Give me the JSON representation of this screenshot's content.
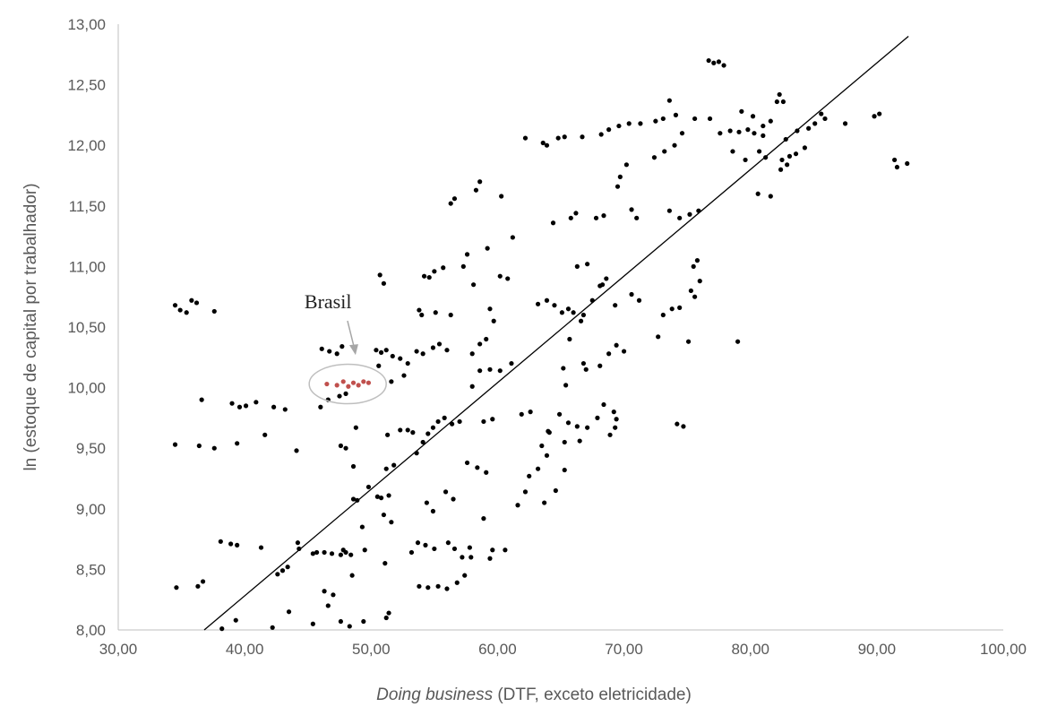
{
  "chart_data": {
    "type": "scatter",
    "title": "",
    "xlabel": {
      "italic": "Doing business",
      "rest": " (DTF, exceto eletricidade)"
    },
    "ylabel": "ln (estoque de capital por trabalhador)",
    "xlim": [
      30,
      100
    ],
    "ylim": [
      8,
      13
    ],
    "x_ticks": [
      "30,00",
      "40,00",
      "50,00",
      "60,00",
      "70,00",
      "80,00",
      "90,00",
      "100,00"
    ],
    "y_ticks": [
      "8,00",
      "8,50",
      "9,00",
      "9,50",
      "10,00",
      "10,50",
      "11,00",
      "11,50",
      "12,00",
      "12,50",
      "13,00"
    ],
    "grid": false,
    "legend": "none",
    "trendline": {
      "x": [
        36.8,
        92.5
      ],
      "y": [
        8.0,
        12.9
      ]
    },
    "point_color": "#000000",
    "highlight_color": "#c0504d",
    "annotation": {
      "text": "Brasil",
      "target": [
        48.7,
        10.27
      ]
    },
    "highlight_points": [
      [
        46.5,
        10.03
      ],
      [
        47.3,
        10.02
      ],
      [
        47.8,
        10.05
      ],
      [
        48.2,
        10.01
      ],
      [
        48.6,
        10.04
      ],
      [
        49.0,
        10.02
      ],
      [
        49.4,
        10.05
      ],
      [
        49.8,
        10.04
      ]
    ],
    "points": [
      [
        34.5,
        10.68
      ],
      [
        34.9,
        10.64
      ],
      [
        35.4,
        10.62
      ],
      [
        35.8,
        10.72
      ],
      [
        36.2,
        10.7
      ],
      [
        37.6,
        10.63
      ],
      [
        34.5,
        9.53
      ],
      [
        36.4,
        9.52
      ],
      [
        37.6,
        9.5
      ],
      [
        36.6,
        9.9
      ],
      [
        34.6,
        8.35
      ],
      [
        36.3,
        8.36
      ],
      [
        36.7,
        8.4
      ],
      [
        39.0,
        9.87
      ],
      [
        39.6,
        9.84
      ],
      [
        40.1,
        9.85
      ],
      [
        40.9,
        9.88
      ],
      [
        41.6,
        9.61
      ],
      [
        42.3,
        9.84
      ],
      [
        43.2,
        9.82
      ],
      [
        44.1,
        9.48
      ],
      [
        39.4,
        9.54
      ],
      [
        38.1,
        8.73
      ],
      [
        38.9,
        8.71
      ],
      [
        39.4,
        8.7
      ],
      [
        41.3,
        8.68
      ],
      [
        43.0,
        8.49
      ],
      [
        43.4,
        8.52
      ],
      [
        42.6,
        8.46
      ],
      [
        44.2,
        8.72
      ],
      [
        44.3,
        8.67
      ],
      [
        45.4,
        8.63
      ],
      [
        45.7,
        8.64
      ],
      [
        46.3,
        8.64
      ],
      [
        46.9,
        8.63
      ],
      [
        47.6,
        8.62
      ],
      [
        48.0,
        8.64
      ],
      [
        48.4,
        8.62
      ],
      [
        47.8,
        8.66
      ],
      [
        48.5,
        8.45
      ],
      [
        47.0,
        8.29
      ],
      [
        46.6,
        8.2
      ],
      [
        46.3,
        8.32
      ],
      [
        45.4,
        8.05
      ],
      [
        47.6,
        8.07
      ],
      [
        48.3,
        8.03
      ],
      [
        49.4,
        8.07
      ],
      [
        38.2,
        8.01
      ],
      [
        39.3,
        8.08
      ],
      [
        42.2,
        8.02
      ],
      [
        43.5,
        8.15
      ],
      [
        51.2,
        8.1
      ],
      [
        51.4,
        8.14
      ],
      [
        51.1,
        8.55
      ],
      [
        46.1,
        10.32
      ],
      [
        46.7,
        10.3
      ],
      [
        47.3,
        10.28
      ],
      [
        47.7,
        10.34
      ],
      [
        46.0,
        9.84
      ],
      [
        46.6,
        9.9
      ],
      [
        47.5,
        9.93
      ],
      [
        48.0,
        9.95
      ],
      [
        47.6,
        9.52
      ],
      [
        48.0,
        9.5
      ],
      [
        48.6,
        9.35
      ],
      [
        48.8,
        9.67
      ],
      [
        48.6,
        9.08
      ],
      [
        48.9,
        9.07
      ],
      [
        49.8,
        9.18
      ],
      [
        50.5,
        9.1
      ],
      [
        50.8,
        9.09
      ],
      [
        51.2,
        9.33
      ],
      [
        51.3,
        9.61
      ],
      [
        51.4,
        9.11
      ],
      [
        51.8,
        9.36
      ],
      [
        52.3,
        9.65
      ],
      [
        52.9,
        9.65
      ],
      [
        53.3,
        9.63
      ],
      [
        51.0,
        8.95
      ],
      [
        51.6,
        8.89
      ],
      [
        49.3,
        8.85
      ],
      [
        49.5,
        8.66
      ],
      [
        50.4,
        10.31
      ],
      [
        50.8,
        10.29
      ],
      [
        51.2,
        10.31
      ],
      [
        51.7,
        10.26
      ],
      [
        52.3,
        10.24
      ],
      [
        52.9,
        10.2
      ],
      [
        53.6,
        10.3
      ],
      [
        54.1,
        10.28
      ],
      [
        54.9,
        10.33
      ],
      [
        55.4,
        10.36
      ],
      [
        56.0,
        10.31
      ],
      [
        50.6,
        10.18
      ],
      [
        51.6,
        10.05
      ],
      [
        52.6,
        10.1
      ],
      [
        53.8,
        10.64
      ],
      [
        54.0,
        10.6
      ],
      [
        55.1,
        10.62
      ],
      [
        54.2,
        10.92
      ],
      [
        54.6,
        10.91
      ],
      [
        55.0,
        10.96
      ],
      [
        55.7,
        10.99
      ],
      [
        56.3,
        10.6
      ],
      [
        50.7,
        10.93
      ],
      [
        51.0,
        10.86
      ],
      [
        53.6,
        9.46
      ],
      [
        54.1,
        9.55
      ],
      [
        54.5,
        9.62
      ],
      [
        54.9,
        9.67
      ],
      [
        55.3,
        9.72
      ],
      [
        55.8,
        9.75
      ],
      [
        56.4,
        9.7
      ],
      [
        57.0,
        9.72
      ],
      [
        54.4,
        9.05
      ],
      [
        54.9,
        8.98
      ],
      [
        55.9,
        9.14
      ],
      [
        56.5,
        9.08
      ],
      [
        57.6,
        9.38
      ],
      [
        58.4,
        9.34
      ],
      [
        59.1,
        9.3
      ],
      [
        58.9,
        8.92
      ],
      [
        53.2,
        8.64
      ],
      [
        53.7,
        8.72
      ],
      [
        54.3,
        8.7
      ],
      [
        55.0,
        8.67
      ],
      [
        56.1,
        8.72
      ],
      [
        56.6,
        8.67
      ],
      [
        57.2,
        8.6
      ],
      [
        57.8,
        8.68
      ],
      [
        53.8,
        8.36
      ],
      [
        54.5,
        8.35
      ],
      [
        55.3,
        8.36
      ],
      [
        56.0,
        8.34
      ],
      [
        56.8,
        8.39
      ],
      [
        57.4,
        8.45
      ],
      [
        57.9,
        8.6
      ],
      [
        56.3,
        11.52
      ],
      [
        56.6,
        11.56
      ],
      [
        57.3,
        11.0
      ],
      [
        57.6,
        11.1
      ],
      [
        58.3,
        11.63
      ],
      [
        58.6,
        11.7
      ],
      [
        58.1,
        10.85
      ],
      [
        59.4,
        10.65
      ],
      [
        59.7,
        10.55
      ],
      [
        60.2,
        10.92
      ],
      [
        60.8,
        10.9
      ],
      [
        61.2,
        11.24
      ],
      [
        59.2,
        11.15
      ],
      [
        60.3,
        11.58
      ],
      [
        58.0,
        10.28
      ],
      [
        58.6,
        10.36
      ],
      [
        59.1,
        10.4
      ],
      [
        58.0,
        10.01
      ],
      [
        58.6,
        10.14
      ],
      [
        59.4,
        10.15
      ],
      [
        60.2,
        10.14
      ],
      [
        61.1,
        10.2
      ],
      [
        58.9,
        9.72
      ],
      [
        59.6,
        9.74
      ],
      [
        61.9,
        9.78
      ],
      [
        62.6,
        9.8
      ],
      [
        61.6,
        9.03
      ],
      [
        62.2,
        9.14
      ],
      [
        62.5,
        9.27
      ],
      [
        63.2,
        9.33
      ],
      [
        63.9,
        9.44
      ],
      [
        64.0,
        9.64
      ],
      [
        63.5,
        9.52
      ],
      [
        63.7,
        9.05
      ],
      [
        64.6,
        9.15
      ],
      [
        65.3,
        9.32
      ],
      [
        59.4,
        8.59
      ],
      [
        59.6,
        8.66
      ],
      [
        60.6,
        8.66
      ],
      [
        62.2,
        12.06
      ],
      [
        63.6,
        12.02
      ],
      [
        63.9,
        12.0
      ],
      [
        64.8,
        12.06
      ],
      [
        65.3,
        12.07
      ],
      [
        66.7,
        12.07
      ],
      [
        64.4,
        11.36
      ],
      [
        65.8,
        11.4
      ],
      [
        66.2,
        11.44
      ],
      [
        67.8,
        11.4
      ],
      [
        68.4,
        11.42
      ],
      [
        66.3,
        11.0
      ],
      [
        67.1,
        11.02
      ],
      [
        68.3,
        10.85
      ],
      [
        68.6,
        10.9
      ],
      [
        63.2,
        10.69
      ],
      [
        63.9,
        10.72
      ],
      [
        64.5,
        10.68
      ],
      [
        65.1,
        10.62
      ],
      [
        65.6,
        10.65
      ],
      [
        66.0,
        10.62
      ],
      [
        66.8,
        10.6
      ],
      [
        65.7,
        10.4
      ],
      [
        66.6,
        10.55
      ],
      [
        67.5,
        10.72
      ],
      [
        68.1,
        10.84
      ],
      [
        69.3,
        10.68
      ],
      [
        65.2,
        10.16
      ],
      [
        65.4,
        10.02
      ],
      [
        66.8,
        10.2
      ],
      [
        67.0,
        10.15
      ],
      [
        68.1,
        10.18
      ],
      [
        64.9,
        9.78
      ],
      [
        65.6,
        9.71
      ],
      [
        66.3,
        9.68
      ],
      [
        67.1,
        9.67
      ],
      [
        67.9,
        9.75
      ],
      [
        68.4,
        9.86
      ],
      [
        69.2,
        9.8
      ],
      [
        69.4,
        9.74
      ],
      [
        68.9,
        9.61
      ],
      [
        69.3,
        9.67
      ],
      [
        64.1,
        9.63
      ],
      [
        65.3,
        9.55
      ],
      [
        66.5,
        9.56
      ],
      [
        68.2,
        12.09
      ],
      [
        68.8,
        12.13
      ],
      [
        69.6,
        12.16
      ],
      [
        70.4,
        12.18
      ],
      [
        71.3,
        12.18
      ],
      [
        72.5,
        12.2
      ],
      [
        73.1,
        12.22
      ],
      [
        73.6,
        12.37
      ],
      [
        74.1,
        12.25
      ],
      [
        74.6,
        12.1
      ],
      [
        69.5,
        11.66
      ],
      [
        69.7,
        11.74
      ],
      [
        70.2,
        11.84
      ],
      [
        70.6,
        11.47
      ],
      [
        71.0,
        11.4
      ],
      [
        72.4,
        11.9
      ],
      [
        73.2,
        11.95
      ],
      [
        74.0,
        12.0
      ],
      [
        75.6,
        12.22
      ],
      [
        73.6,
        11.46
      ],
      [
        74.4,
        11.4
      ],
      [
        75.2,
        11.43
      ],
      [
        75.9,
        11.46
      ],
      [
        69.4,
        10.35
      ],
      [
        70.0,
        10.3
      ],
      [
        68.8,
        10.28
      ],
      [
        70.6,
        10.77
      ],
      [
        71.2,
        10.72
      ],
      [
        72.7,
        10.42
      ],
      [
        73.1,
        10.6
      ],
      [
        73.8,
        10.65
      ],
      [
        74.4,
        10.66
      ],
      [
        75.3,
        10.8
      ],
      [
        75.6,
        10.75
      ],
      [
        76.0,
        10.88
      ],
      [
        75.5,
        11.0
      ],
      [
        75.8,
        11.05
      ],
      [
        75.1,
        10.38
      ],
      [
        74.2,
        9.7
      ],
      [
        74.7,
        9.68
      ],
      [
        79.0,
        10.38
      ],
      [
        76.7,
        12.7
      ],
      [
        77.1,
        12.68
      ],
      [
        77.5,
        12.69
      ],
      [
        77.9,
        12.66
      ],
      [
        76.8,
        12.22
      ],
      [
        77.6,
        12.1
      ],
      [
        78.4,
        12.12
      ],
      [
        79.1,
        12.11
      ],
      [
        79.8,
        12.13
      ],
      [
        80.3,
        12.1
      ],
      [
        81.0,
        12.16
      ],
      [
        81.6,
        12.2
      ],
      [
        82.1,
        12.36
      ],
      [
        82.3,
        12.42
      ],
      [
        82.6,
        12.36
      ],
      [
        79.3,
        12.28
      ],
      [
        80.2,
        12.24
      ],
      [
        80.7,
        11.95
      ],
      [
        81.2,
        11.9
      ],
      [
        82.5,
        11.88
      ],
      [
        83.1,
        11.91
      ],
      [
        83.6,
        11.93
      ],
      [
        84.3,
        11.98
      ],
      [
        84.6,
        12.14
      ],
      [
        85.1,
        12.18
      ],
      [
        85.6,
        12.26
      ],
      [
        85.9,
        12.22
      ],
      [
        83.7,
        12.12
      ],
      [
        82.8,
        12.05
      ],
      [
        81.0,
        12.08
      ],
      [
        80.6,
        11.6
      ],
      [
        81.6,
        11.58
      ],
      [
        82.4,
        11.8
      ],
      [
        82.9,
        11.84
      ],
      [
        78.6,
        11.95
      ],
      [
        79.6,
        11.88
      ],
      [
        89.8,
        12.24
      ],
      [
        90.2,
        12.26
      ],
      [
        87.5,
        12.18
      ],
      [
        91.4,
        11.88
      ],
      [
        91.6,
        11.82
      ],
      [
        92.4,
        11.85
      ]
    ]
  }
}
